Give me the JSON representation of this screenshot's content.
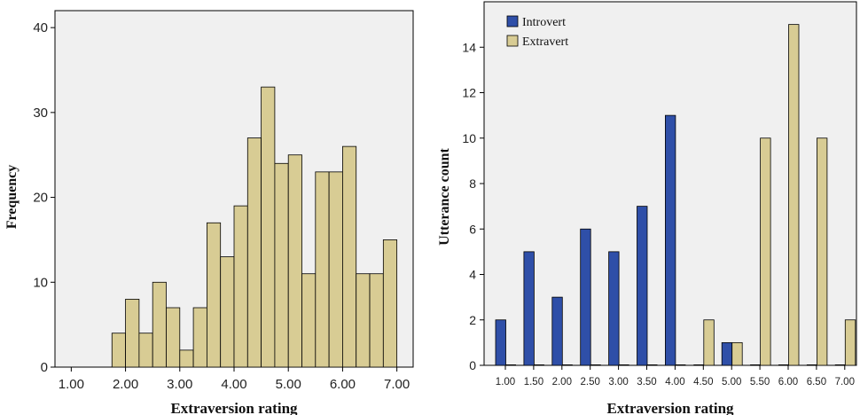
{
  "chart_data": [
    {
      "type": "bar",
      "subtype": "histogram",
      "xlabel": "Extraversion rating",
      "ylabel": "Frequency",
      "xlim": [
        0.7,
        7.3
      ],
      "ylim": [
        0,
        42
      ],
      "xticks": [
        "1.00",
        "2.00",
        "3.00",
        "4.00",
        "5.00",
        "6.00",
        "7.00"
      ],
      "yticks": [
        "0",
        "10",
        "20",
        "30",
        "40"
      ],
      "bin_width": 0.25,
      "bins_start": [
        1.75,
        2.0,
        2.25,
        2.5,
        2.75,
        3.0,
        3.25,
        3.5,
        3.75,
        4.0,
        4.25,
        4.5,
        4.75,
        5.0,
        5.25,
        5.5,
        5.75,
        6.0,
        6.25,
        6.5,
        6.75
      ],
      "values": [
        4,
        8,
        4,
        10,
        7,
        2,
        7,
        17,
        13,
        19,
        27,
        33,
        24,
        25,
        11,
        23,
        23,
        26,
        11,
        11,
        15
      ],
      "bar_color": "#d8cc94",
      "background": "#f0f0f0",
      "grid": false
    },
    {
      "type": "bar",
      "subtype": "grouped",
      "xlabel": "Extraversion rating",
      "ylabel": "Utterance count",
      "categories": [
        "1.00",
        "1.50",
        "2.00",
        "2.50",
        "3.00",
        "3.50",
        "4.00",
        "4.50",
        "5.00",
        "5.50",
        "6.00",
        "6.50",
        "7.00"
      ],
      "ylim": [
        0,
        16
      ],
      "yticks": [
        "0",
        "2",
        "4",
        "6",
        "8",
        "10",
        "12",
        "14"
      ],
      "legend_position": "top-left",
      "series": [
        {
          "name": "Introvert",
          "color": "#2f4fa8",
          "values": [
            2,
            5,
            3,
            6,
            5,
            7,
            11,
            0,
            1,
            0,
            0,
            0,
            0
          ]
        },
        {
          "name": "Extravert",
          "color": "#d8cc94",
          "values": [
            0,
            0,
            0,
            0,
            0,
            0,
            0,
            2,
            1,
            10,
            15,
            10,
            2
          ]
        }
      ],
      "background": "#f0f0f0",
      "grid": false
    }
  ]
}
